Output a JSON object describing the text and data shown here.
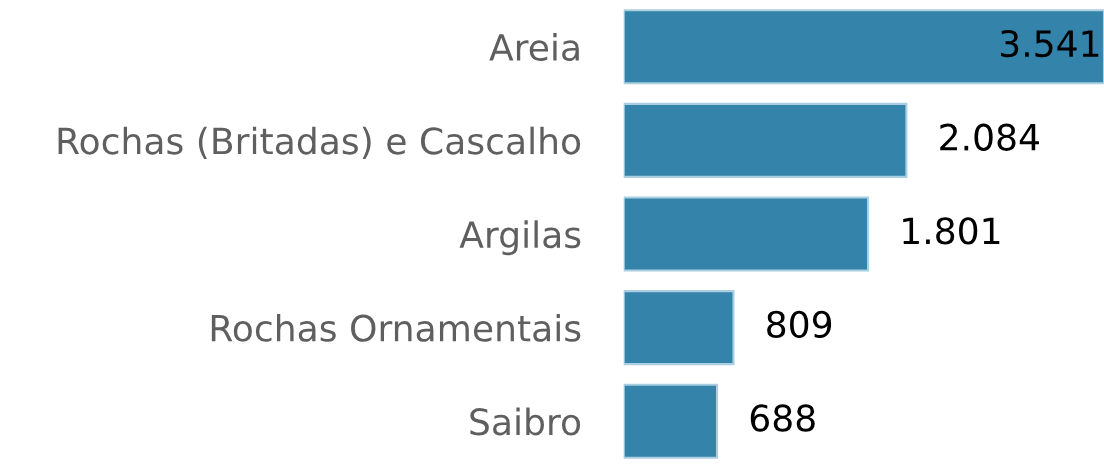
{
  "chart_data": {
    "type": "bar",
    "orientation": "horizontal",
    "categories": [
      "Areia",
      "Rochas (Britadas) e Cascalho",
      "Argilas",
      "Rochas Ornamentais",
      "Saibro"
    ],
    "values": [
      3541,
      2084,
      1801,
      809,
      688
    ],
    "value_labels": [
      "3.541",
      "2.084",
      "1.801",
      "809",
      "688"
    ],
    "color": "#3483ab",
    "grid": false,
    "legend": false
  }
}
